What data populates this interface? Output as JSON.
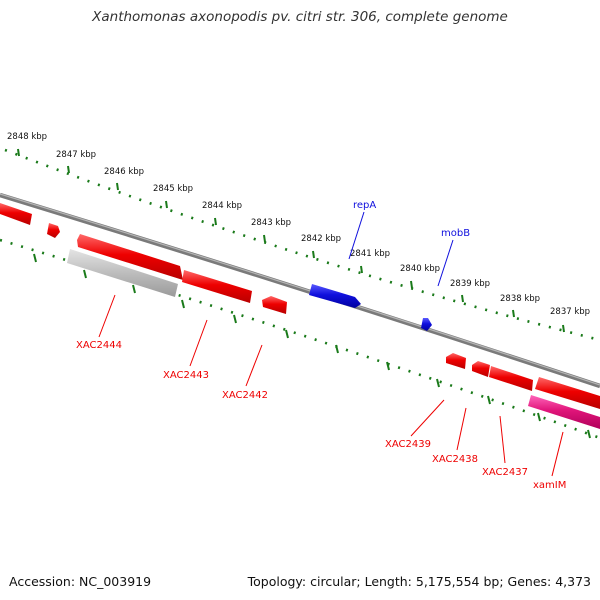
{
  "title": "Xanthomonas axonopodis pv. citri str. 306, complete genome",
  "footer": {
    "accession": "Accession: NC_003919",
    "summary": "Topology: circular; Length: 5,175,554 bp; Genes: 4,373"
  },
  "colors": {
    "backbone": "#7f7f7f",
    "tick": "#1a7a1a",
    "gene": "#ee0000",
    "plasmid_gene": "#1010dd",
    "pseudogene": "#b8b8b8",
    "rna": "#e0157a"
  },
  "kbp_ticks": [
    {
      "label": "2848 kbp"
    },
    {
      "label": "2847 kbp"
    },
    {
      "label": "2846 kbp"
    },
    {
      "label": "2845 kbp"
    },
    {
      "label": "2844 kbp"
    },
    {
      "label": "2843 kbp"
    },
    {
      "label": "2842 kbp"
    },
    {
      "label": "2841 kbp"
    },
    {
      "label": "2840 kbp"
    },
    {
      "label": "2839 kbp"
    },
    {
      "label": "2838 kbp"
    },
    {
      "label": "2837 kbp"
    }
  ],
  "gene_labels": {
    "repA": "repA",
    "mobB": "mobB",
    "xac2444": "XAC2444",
    "xac2443": "XAC2443",
    "xac2442": "XAC2442",
    "xac2439": "XAC2439",
    "xac2438": "XAC2438",
    "xac2437": "XAC2437",
    "xamIM": "xamIM"
  }
}
